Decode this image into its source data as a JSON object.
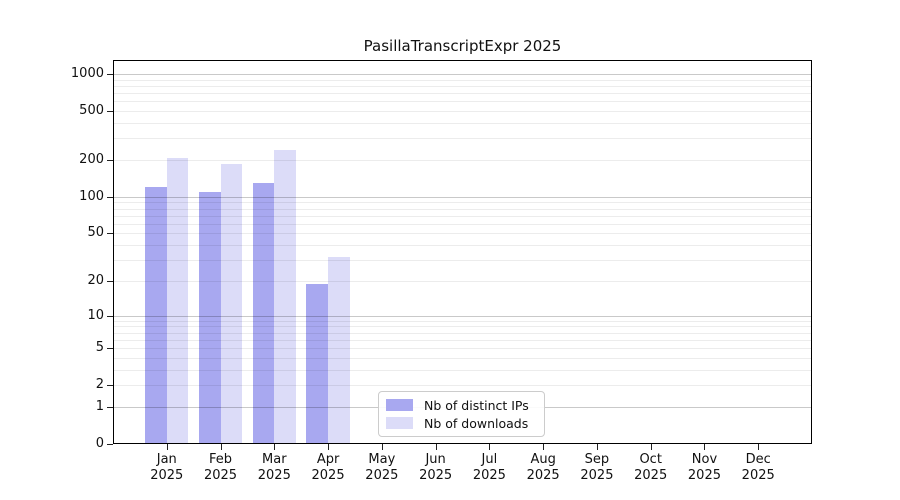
{
  "chart_data": {
    "type": "bar",
    "title": "PasillaTranscriptExpr 2025",
    "categories": [
      "Jan 2025",
      "Feb 2025",
      "Mar 2025",
      "Apr 2025",
      "May 2025",
      "Jun 2025",
      "Jul 2025",
      "Aug 2025",
      "Sep 2025",
      "Oct 2025",
      "Nov 2025",
      "Dec 2025"
    ],
    "series": [
      {
        "name": "Nb of distinct IPs",
        "color": "#a8a8f0",
        "values": [
          120,
          110,
          130,
          19,
          0,
          0,
          0,
          0,
          0,
          0,
          0,
          0
        ]
      },
      {
        "name": "Nb of downloads",
        "color": "#dcdcf8",
        "values": [
          208,
          185,
          242,
          32,
          0,
          0,
          0,
          0,
          0,
          0,
          0,
          0
        ]
      }
    ],
    "xlabel": "",
    "ylabel": "",
    "yscale": "log1p",
    "ylim": [
      0,
      1300
    ],
    "yticks": [
      0,
      1,
      2,
      5,
      10,
      20,
      50,
      100,
      200,
      500,
      1000
    ],
    "minor_grid_subs": [
      2,
      3,
      4,
      5,
      6,
      7,
      8,
      9
    ],
    "major_grid_at": [
      1,
      10,
      100,
      1000
    ],
    "grid": true,
    "legend_position": "lower-center-inside",
    "colors": {
      "major_grid": "#c9c9c9",
      "minor_grid": "#ececec",
      "axis": "#000000",
      "text": "#111111",
      "background": "#ffffff"
    }
  }
}
